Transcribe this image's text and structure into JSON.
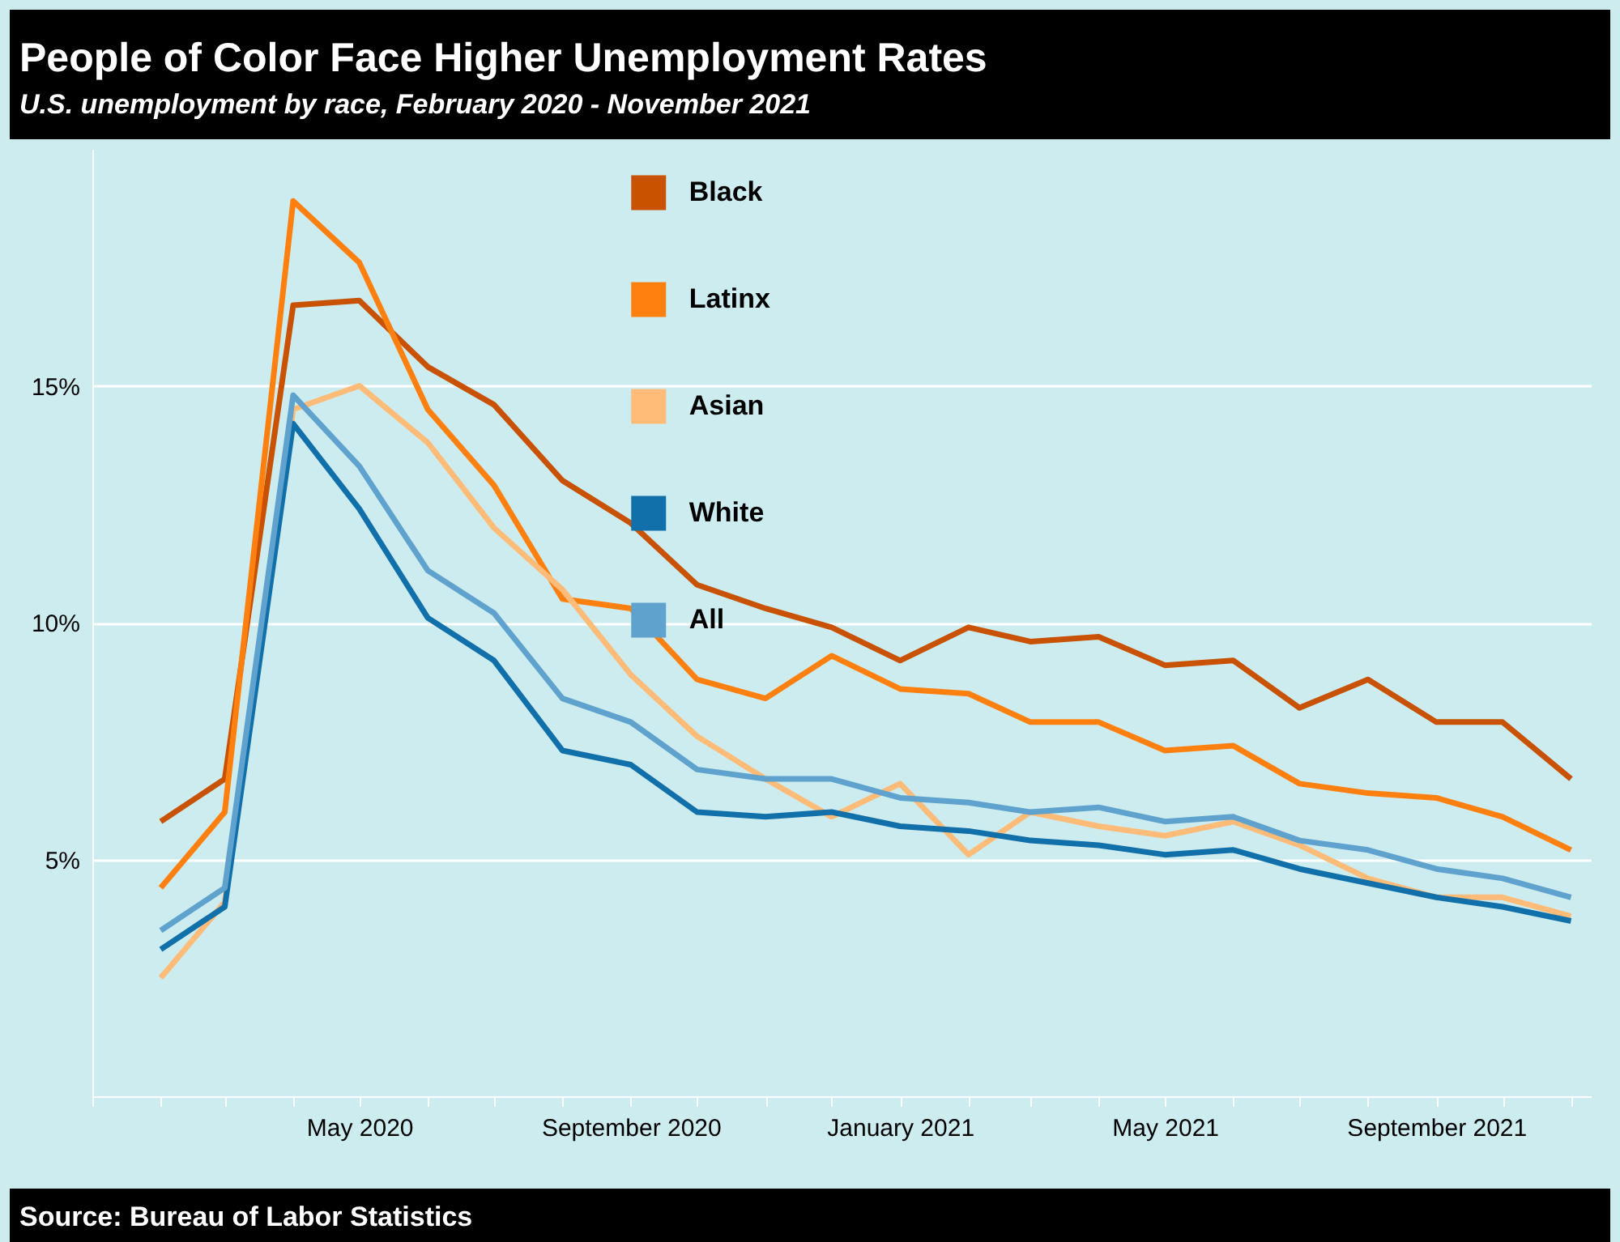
{
  "chart_data": {
    "type": "line",
    "title": "People of Color Face Higher Unemployment Rates",
    "subtitle": "U.S. unemployment by race, February 2020 - November 2021",
    "annotations": [
      "Source: Bureau of Labor Statistics"
    ],
    "x": [
      "2020-02",
      "2020-03",
      "2020-04",
      "2020-05",
      "2020-06",
      "2020-07",
      "2020-08",
      "2020-09",
      "2020-10",
      "2020-11",
      "2020-12",
      "2021-01",
      "2021-02",
      "2021-03",
      "2021-04",
      "2021-05",
      "2021-06",
      "2021-07",
      "2021-08",
      "2021-09",
      "2021-10",
      "2021-11"
    ],
    "series": [
      {
        "name": "Black",
        "color": "#c85200",
        "values": [
          5.8,
          6.7,
          16.7,
          16.8,
          15.4,
          14.6,
          13.0,
          12.1,
          10.8,
          10.3,
          9.9,
          9.2,
          9.9,
          9.6,
          9.7,
          9.1,
          9.2,
          8.2,
          8.8,
          7.9,
          7.9,
          6.7
        ]
      },
      {
        "name": "Latinx",
        "color": "#ff800e",
        "values": [
          4.4,
          6.0,
          18.9,
          17.6,
          14.5,
          12.9,
          10.5,
          10.3,
          8.8,
          8.4,
          9.3,
          8.6,
          8.5,
          7.9,
          7.9,
          7.3,
          7.4,
          6.6,
          6.4,
          6.3,
          5.9,
          5.2
        ]
      },
      {
        "name": "Asian",
        "color": "#ffbc79",
        "values": [
          2.5,
          4.1,
          14.5,
          15.0,
          13.8,
          12.0,
          10.7,
          8.9,
          7.6,
          6.7,
          5.9,
          6.6,
          5.1,
          6.0,
          5.7,
          5.5,
          5.8,
          5.3,
          4.6,
          4.2,
          4.2,
          3.8
        ]
      },
      {
        "name": "White",
        "color": "#1170aa",
        "values": [
          3.1,
          4.0,
          14.2,
          12.4,
          10.1,
          9.2,
          7.3,
          7.0,
          6.0,
          5.9,
          6.0,
          5.7,
          5.6,
          5.4,
          5.3,
          5.1,
          5.2,
          4.8,
          4.5,
          4.2,
          4.0,
          3.7
        ]
      },
      {
        "name": "All",
        "color": "#5fa2ce",
        "values": [
          3.5,
          4.4,
          14.8,
          13.3,
          11.1,
          10.2,
          8.4,
          7.9,
          6.9,
          6.7,
          6.7,
          6.3,
          6.2,
          6.0,
          6.1,
          5.8,
          5.9,
          5.4,
          5.2,
          4.8,
          4.6,
          4.2
        ]
      }
    ],
    "xlim": [
      "2020-01-01",
      "2021-11-10"
    ],
    "xticks": [
      {
        "value": "2020-01",
        "label": null
      },
      {
        "value": "2020-02",
        "label": null
      },
      {
        "value": "2020-03",
        "label": null
      },
      {
        "value": "2020-04",
        "label": null
      },
      {
        "value": "2020-05",
        "label": "May 2020"
      },
      {
        "value": "2020-06",
        "label": null
      },
      {
        "value": "2020-07",
        "label": null
      },
      {
        "value": "2020-08",
        "label": null
      },
      {
        "value": "2020-09",
        "label": "September 2020"
      },
      {
        "value": "2020-10",
        "label": null
      },
      {
        "value": "2020-11",
        "label": null
      },
      {
        "value": "2020-12",
        "label": null
      },
      {
        "value": "2021-01",
        "label": "January 2021"
      },
      {
        "value": "2021-02",
        "label": null
      },
      {
        "value": "2021-03",
        "label": null
      },
      {
        "value": "2021-04",
        "label": null
      },
      {
        "value": "2021-05",
        "label": "May 2021"
      },
      {
        "value": "2021-06",
        "label": null
      },
      {
        "value": "2021-07",
        "label": null
      },
      {
        "value": "2021-08",
        "label": null
      },
      {
        "value": "2021-09",
        "label": "September 2021"
      },
      {
        "value": "2021-10",
        "label": null
      },
      {
        "value": "2021-11",
        "label": null
      }
    ],
    "ylim": [
      0,
      20
    ],
    "yticks": [
      {
        "value": 5,
        "label": "5%"
      },
      {
        "value": 10,
        "label": "10%"
      },
      {
        "value": 15,
        "label": "15%"
      }
    ],
    "grid": "y",
    "legend": "top",
    "marker": "none",
    "line_style": "solid"
  }
}
